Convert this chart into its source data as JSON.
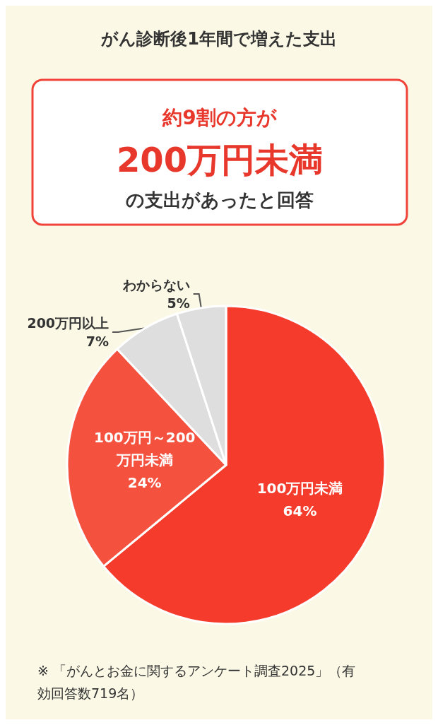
{
  "chart_data": {
    "type": "pie",
    "title": "がん診断後1年間で増えた支出",
    "categories": [
      "100万円未満",
      "100万円～200万円未満",
      "200万円以上",
      "わからない"
    ],
    "values": [
      64,
      24,
      7,
      5
    ],
    "colors": [
      "#f53b2b",
      "#f5513f",
      "#dedede",
      "#dedede"
    ],
    "value_labels": [
      "64%",
      "24%",
      "7%",
      "5%"
    ],
    "legend": false,
    "annotations": [
      "約9割の方が",
      "200万円未満",
      "の支出があったと回答",
      "※ 「がんとお金に関するアンケート調査2025」（有効回答数719名）"
    ]
  }
}
